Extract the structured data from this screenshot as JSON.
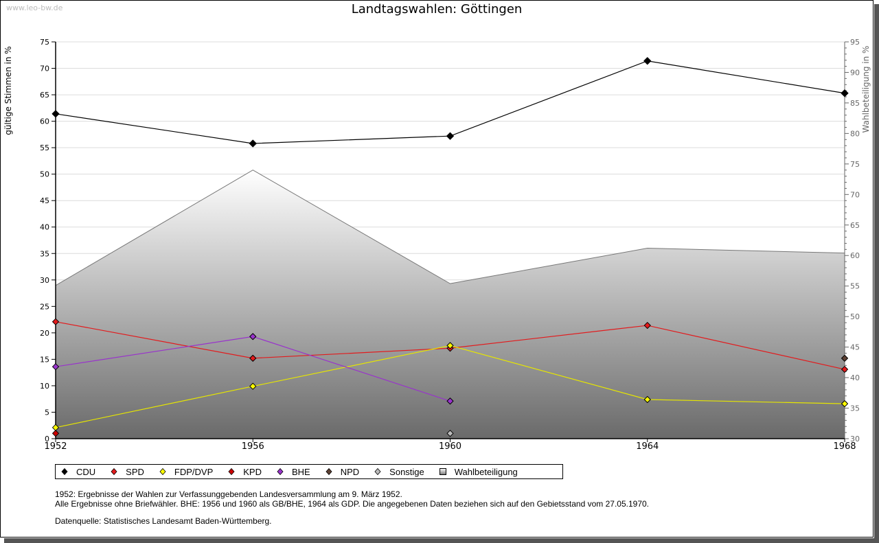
{
  "watermark": "www.leo-bw.de",
  "chart_data": {
    "type": "line",
    "title": "Landtagswahlen: Göttingen",
    "ylabel": "gültige Stimmen in %",
    "ylabel_right": "Wahlbeteiligung in %",
    "xlabel": "",
    "categories": [
      "1952",
      "1956",
      "1960",
      "1964",
      "1968"
    ],
    "ylim": [
      0,
      75
    ],
    "ylim_right": [
      30,
      95
    ],
    "yticks": [
      0,
      5,
      10,
      15,
      20,
      25,
      30,
      35,
      40,
      45,
      50,
      55,
      60,
      65,
      70,
      75
    ],
    "yticks_right": [
      30,
      35,
      40,
      45,
      50,
      55,
      60,
      65,
      70,
      75,
      80,
      85,
      90,
      95
    ],
    "grid": true,
    "legend_position": "bottom-left",
    "series": [
      {
        "name": "CDU",
        "color": "#000000",
        "axis": "left",
        "values": [
          61.4,
          55.8,
          57.2,
          71.4,
          65.3
        ]
      },
      {
        "name": "SPD",
        "color": "#e31a1c",
        "axis": "left",
        "values": [
          22.1,
          15.2,
          17.1,
          21.4,
          13.1
        ]
      },
      {
        "name": "FDP/DVP",
        "color": "#ffff00",
        "axis": "left",
        "values": [
          2.1,
          9.9,
          17.6,
          7.4,
          6.6
        ]
      },
      {
        "name": "KPD",
        "color": "#cc0000",
        "axis": "left",
        "values": [
          1.0,
          null,
          null,
          null,
          null
        ]
      },
      {
        "name": "BHE",
        "color": "#9933cc",
        "axis": "left",
        "values": [
          13.6,
          19.3,
          7.1,
          null,
          null
        ]
      },
      {
        "name": "NPD",
        "color": "#5c4033",
        "axis": "left",
        "values": [
          null,
          null,
          null,
          null,
          15.2
        ]
      },
      {
        "name": "Sonstige",
        "color": "#bbbbbb",
        "axis": "left",
        "values": [
          null,
          null,
          1.0,
          null,
          null
        ]
      },
      {
        "name": "Wahlbeteiligung",
        "color": "#888888",
        "axis": "right",
        "type": "area",
        "values": [
          55.1,
          74.0,
          55.4,
          61.2,
          60.4
        ]
      }
    ]
  },
  "notes": {
    "line1": "1952: Ergebnisse der Wahlen zur Verfassunggebenden Landesversammlung am 9. März 1952.",
    "line2": "Alle Ergebnisse ohne Briefwähler. BHE: 1956 und 1960 als GB/BHE, 1964 als GDP. Die angegebenen Daten beziehen sich auf den Gebietsstand vom 27.05.1970.",
    "source": "Datenquelle: Statistisches Landesamt Baden-Württemberg."
  }
}
